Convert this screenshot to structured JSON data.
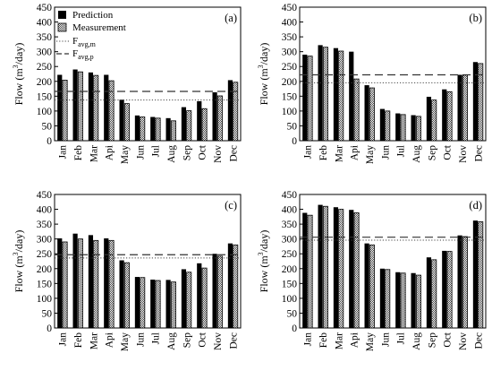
{
  "chart_data": [
    {
      "type": "bar",
      "panel_label": "(a)",
      "categories": [
        "Jan",
        "Feb",
        "Mar",
        "Api",
        "May",
        "Jun",
        "Jul",
        "Aug",
        "Sep",
        "Oct",
        "Nov",
        "Dec"
      ],
      "ylabel": "Flow (m3/day)",
      "ylim": [
        0,
        450
      ],
      "yticks": [
        0,
        50,
        100,
        150,
        200,
        250,
        300,
        350,
        400,
        450
      ],
      "series": [
        {
          "name": "Prediction",
          "values": [
            222,
            240,
            230,
            222,
            138,
            85,
            80,
            76,
            113,
            133,
            163,
            204
          ]
        },
        {
          "name": "Measurement",
          "values": [
            204,
            232,
            220,
            202,
            125,
            80,
            76,
            67,
            101,
            108,
            151,
            197
          ]
        }
      ],
      "reference_lines": {
        "F_avg_m": 137,
        "F_avg_p": 166
      },
      "legend": {
        "placement": "top-left",
        "prediction": "Prediction",
        "measurement": "Measurement",
        "favg_m": {
          "base": "F",
          "sub": "avg,m"
        },
        "favg_p": {
          "base": "F",
          "sub": "avg,p"
        }
      }
    },
    {
      "type": "bar",
      "panel_label": "(b)",
      "categories": [
        "Jan",
        "Feb",
        "Mar",
        "Api",
        "May",
        "Jun",
        "Jul",
        "Aug",
        "Sep",
        "Oct",
        "Nov",
        "Dec"
      ],
      "ylabel": "Flow (m3/day)",
      "ylim": [
        0,
        450
      ],
      "yticks": [
        0,
        50,
        100,
        150,
        200,
        250,
        300,
        350,
        400,
        450
      ],
      "series": [
        {
          "name": "Prediction",
          "values": [
            290,
            322,
            312,
            300,
            187,
            107,
            92,
            86,
            148,
            173,
            222,
            265
          ]
        },
        {
          "name": "Measurement",
          "values": [
            285,
            315,
            302,
            208,
            178,
            100,
            88,
            82,
            137,
            165,
            221,
            260
          ]
        }
      ],
      "reference_lines": {
        "F_avg_m": 195,
        "F_avg_p": 222
      }
    },
    {
      "type": "bar",
      "panel_label": "(c)",
      "categories": [
        "Jan",
        "Feb",
        "Mar",
        "Api",
        "May",
        "Jun",
        "Jul",
        "Aug",
        "Sep",
        "Oct",
        "Nov",
        "Dec"
      ],
      "ylabel": "Flow (m3/day)",
      "ylim": [
        0,
        450
      ],
      "yticks": [
        0,
        50,
        100,
        150,
        200,
        250,
        300,
        350,
        400,
        450
      ],
      "series": [
        {
          "name": "Prediction",
          "values": [
            302,
            318,
            313,
            302,
            228,
            172,
            163,
            162,
            198,
            218,
            250,
            285
          ]
        },
        {
          "name": "Measurement",
          "values": [
            290,
            300,
            295,
            295,
            220,
            170,
            160,
            155,
            188,
            202,
            242,
            280
          ]
        }
      ],
      "reference_lines": {
        "F_avg_m": 236,
        "F_avg_p": 247
      }
    },
    {
      "type": "bar",
      "panel_label": "(d)",
      "categories": [
        "Jan",
        "Feb",
        "Mar",
        "Api",
        "May",
        "Jun",
        "Jul",
        "Aug",
        "Sep",
        "Oct",
        "Nov",
        "Dec"
      ],
      "ylabel": "Flow (m3/day)",
      "ylim": [
        0,
        450
      ],
      "yticks": [
        0,
        50,
        100,
        150,
        200,
        250,
        300,
        350,
        400,
        450
      ],
      "series": [
        {
          "name": "Prediction",
          "values": [
            388,
            415,
            407,
            398,
            285,
            200,
            188,
            185,
            238,
            260,
            312,
            362
          ]
        },
        {
          "name": "Measurement",
          "values": [
            380,
            410,
            400,
            388,
            280,
            197,
            185,
            178,
            230,
            258,
            308,
            358
          ]
        }
      ],
      "reference_lines": {
        "F_avg_m": 296,
        "F_avg_p": 306
      }
    }
  ]
}
